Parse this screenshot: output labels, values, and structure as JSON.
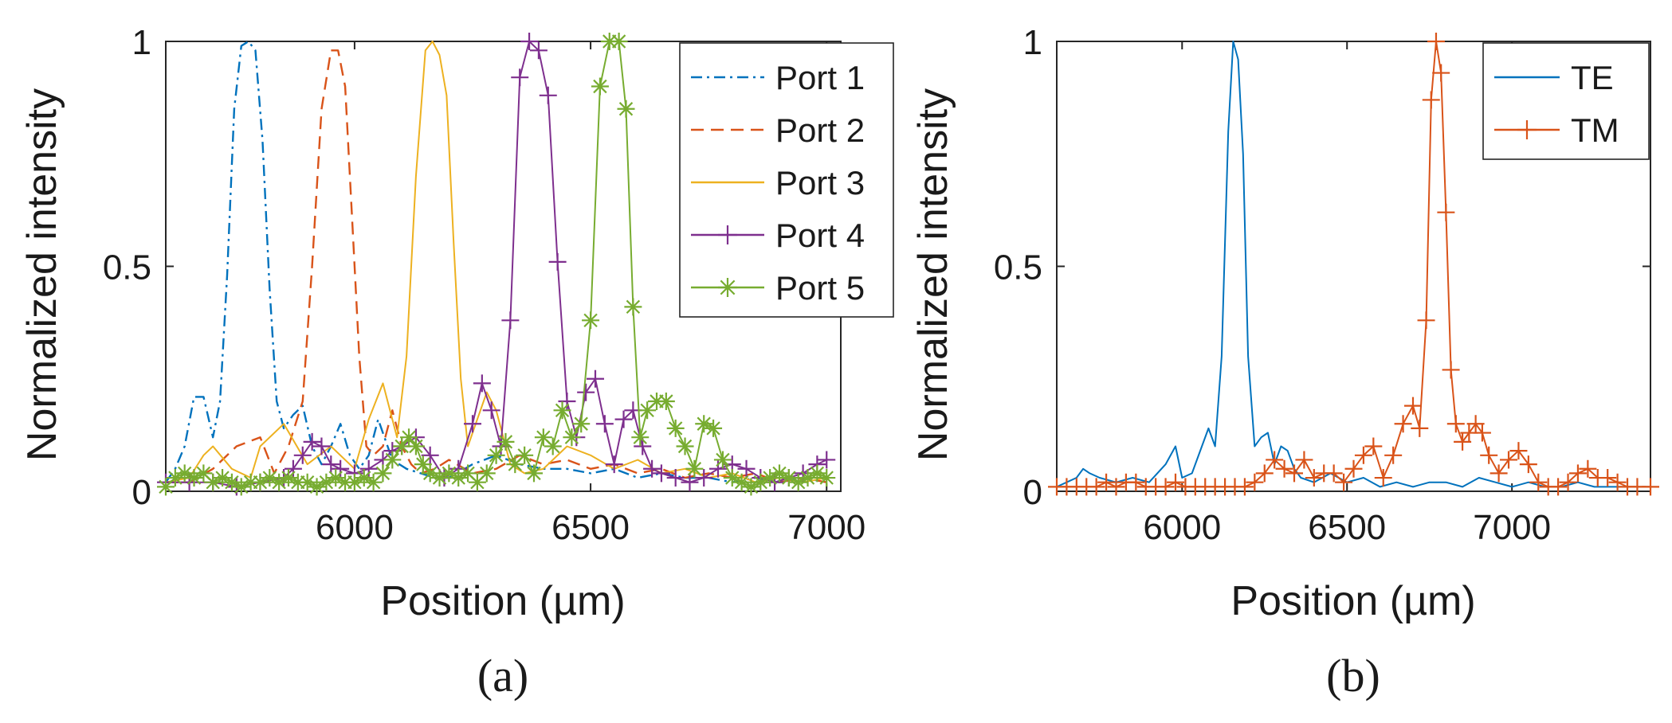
{
  "chart_data": [
    {
      "type": "line",
      "panel": "(a)",
      "xlabel": "Position (µm)",
      "ylabel": "Normalized intensity",
      "xlim": [
        5600,
        7030
      ],
      "ylim": [
        0,
        1
      ],
      "xticks": [
        6000,
        6500,
        7000
      ],
      "yticks": [
        0,
        0.5,
        1
      ],
      "ytick_labels": [
        "0",
        "0.5",
        "1"
      ],
      "legend_position": "top-right",
      "series": [
        {
          "name": "Port 1",
          "color": "#0072BD",
          "dash": "dashdot",
          "marker": "none",
          "x": [
            5600,
            5620,
            5640,
            5660,
            5680,
            5700,
            5715,
            5730,
            5745,
            5760,
            5775,
            5790,
            5805,
            5820,
            5835,
            5850,
            5870,
            5890,
            5910,
            5930,
            5950,
            5970,
            5990,
            6010,
            6030,
            6050,
            6080,
            6110,
            6140,
            6170,
            6200,
            6250,
            6300,
            6350,
            6400,
            6450,
            6500,
            6550,
            6600,
            6650,
            6700,
            6750,
            6800,
            6850,
            6900,
            6950,
            7000
          ],
          "y": [
            0.02,
            0.05,
            0.1,
            0.21,
            0.21,
            0.12,
            0.2,
            0.48,
            0.85,
            0.99,
            1.0,
            0.98,
            0.78,
            0.45,
            0.2,
            0.14,
            0.17,
            0.19,
            0.1,
            0.06,
            0.1,
            0.15,
            0.08,
            0.05,
            0.08,
            0.16,
            0.07,
            0.05,
            0.04,
            0.03,
            0.03,
            0.06,
            0.08,
            0.06,
            0.05,
            0.05,
            0.04,
            0.05,
            0.03,
            0.04,
            0.03,
            0.03,
            0.02,
            0.03,
            0.02,
            0.03,
            0.02
          ]
        },
        {
          "name": "Port 2",
          "color": "#D95319",
          "dash": "dash",
          "marker": "none",
          "x": [
            5600,
            5650,
            5700,
            5750,
            5800,
            5830,
            5860,
            5890,
            5910,
            5930,
            5950,
            5965,
            5980,
            5995,
            6010,
            6025,
            6040,
            6060,
            6080,
            6100,
            6120,
            6140,
            6170,
            6200,
            6250,
            6300,
            6350,
            6400,
            6450,
            6500,
            6550,
            6600,
            6650,
            6700,
            6750,
            6800,
            6850,
            6900,
            6950,
            7000
          ],
          "y": [
            0.02,
            0.02,
            0.05,
            0.1,
            0.12,
            0.04,
            0.1,
            0.2,
            0.5,
            0.85,
            0.98,
            0.98,
            0.9,
            0.6,
            0.3,
            0.1,
            0.08,
            0.1,
            0.18,
            0.1,
            0.06,
            0.04,
            0.05,
            0.07,
            0.04,
            0.05,
            0.08,
            0.06,
            0.07,
            0.05,
            0.06,
            0.04,
            0.05,
            0.03,
            0.04,
            0.03,
            0.04,
            0.02,
            0.03,
            0.02
          ]
        },
        {
          "name": "Port 3",
          "color": "#EDB120",
          "dash": "solid",
          "marker": "none",
          "x": [
            5600,
            5650,
            5680,
            5700,
            5740,
            5780,
            5800,
            5850,
            5900,
            5950,
            6000,
            6030,
            6060,
            6090,
            6110,
            6130,
            6150,
            6165,
            6180,
            6195,
            6210,
            6225,
            6240,
            6260,
            6280,
            6300,
            6330,
            6360,
            6400,
            6450,
            6500,
            6550,
            6600,
            6650,
            6700,
            6750,
            6800,
            6850,
            6900,
            6950,
            7000
          ],
          "y": [
            0.02,
            0.03,
            0.08,
            0.1,
            0.05,
            0.03,
            0.1,
            0.15,
            0.06,
            0.1,
            0.05,
            0.16,
            0.24,
            0.12,
            0.3,
            0.7,
            0.98,
            1.0,
            0.97,
            0.88,
            0.55,
            0.25,
            0.1,
            0.16,
            0.22,
            0.18,
            0.06,
            0.04,
            0.05,
            0.1,
            0.08,
            0.05,
            0.07,
            0.04,
            0.05,
            0.03,
            0.04,
            0.02,
            0.03,
            0.02,
            0.03
          ]
        },
        {
          "name": "Port 4",
          "color": "#7E2F8E",
          "dash": "solid",
          "marker": "plus",
          "x": [
            5600,
            5650,
            5700,
            5750,
            5800,
            5850,
            5870,
            5890,
            5910,
            5930,
            5950,
            5970,
            6000,
            6030,
            6060,
            6080,
            6100,
            6130,
            6160,
            6190,
            6220,
            6250,
            6270,
            6290,
            6310,
            6330,
            6350,
            6370,
            6390,
            6410,
            6430,
            6450,
            6470,
            6490,
            6510,
            6530,
            6550,
            6570,
            6590,
            6610,
            6630,
            6650,
            6680,
            6710,
            6740,
            6770,
            6800,
            6830,
            6860,
            6890,
            6920,
            6950,
            6980,
            7000
          ],
          "y": [
            0.02,
            0.02,
            0.02,
            0.01,
            0.02,
            0.03,
            0.05,
            0.08,
            0.11,
            0.1,
            0.06,
            0.05,
            0.04,
            0.05,
            0.07,
            0.09,
            0.1,
            0.12,
            0.08,
            0.03,
            0.05,
            0.15,
            0.24,
            0.18,
            0.1,
            0.38,
            0.92,
            1.0,
            0.98,
            0.88,
            0.51,
            0.2,
            0.12,
            0.22,
            0.25,
            0.15,
            0.06,
            0.16,
            0.18,
            0.1,
            0.05,
            0.04,
            0.03,
            0.02,
            0.03,
            0.05,
            0.06,
            0.05,
            0.03,
            0.02,
            0.03,
            0.04,
            0.06,
            0.07
          ]
        },
        {
          "name": "Port 5",
          "color": "#77AC30",
          "dash": "solid",
          "marker": "asterisk",
          "x": [
            5600,
            5620,
            5640,
            5660,
            5680,
            5700,
            5720,
            5740,
            5760,
            5780,
            5800,
            5820,
            5840,
            5860,
            5880,
            5900,
            5920,
            5940,
            5960,
            5980,
            6000,
            6020,
            6040,
            6060,
            6080,
            6100,
            6115,
            6130,
            6145,
            6160,
            6180,
            6200,
            6220,
            6240,
            6260,
            6280,
            6300,
            6320,
            6340,
            6360,
            6380,
            6400,
            6420,
            6440,
            6460,
            6480,
            6500,
            6520,
            6540,
            6560,
            6575,
            6590,
            6605,
            6620,
            6640,
            6660,
            6680,
            6700,
            6720,
            6740,
            6760,
            6780,
            6800,
            6820,
            6840,
            6860,
            6880,
            6900,
            6920,
            6940,
            6960,
            6980,
            7000
          ],
          "y": [
            0.01,
            0.03,
            0.04,
            0.03,
            0.04,
            0.02,
            0.03,
            0.02,
            0.01,
            0.02,
            0.02,
            0.03,
            0.02,
            0.03,
            0.02,
            0.02,
            0.01,
            0.02,
            0.03,
            0.02,
            0.02,
            0.03,
            0.02,
            0.04,
            0.07,
            0.1,
            0.12,
            0.1,
            0.06,
            0.04,
            0.03,
            0.04,
            0.03,
            0.04,
            0.02,
            0.04,
            0.08,
            0.11,
            0.06,
            0.08,
            0.04,
            0.12,
            0.1,
            0.18,
            0.12,
            0.15,
            0.38,
            0.9,
            1.0,
            1.0,
            0.85,
            0.41,
            0.12,
            0.18,
            0.2,
            0.2,
            0.14,
            0.1,
            0.05,
            0.15,
            0.14,
            0.07,
            0.03,
            0.02,
            0.01,
            0.02,
            0.03,
            0.04,
            0.03,
            0.02,
            0.03,
            0.04,
            0.03
          ]
        }
      ]
    },
    {
      "type": "line",
      "panel": "(b)",
      "xlabel": "Position (µm)",
      "ylabel": "Normalized intensity",
      "xlim": [
        5620,
        7420
      ],
      "ylim": [
        0,
        1
      ],
      "xticks": [
        6000,
        6500,
        7000
      ],
      "yticks": [
        0,
        0.5,
        1
      ],
      "ytick_labels": [
        "0",
        "0.5",
        "1"
      ],
      "legend_position": "top-right",
      "series": [
        {
          "name": "TE",
          "color": "#0072BD",
          "dash": "solid",
          "marker": "none",
          "x": [
            5620,
            5650,
            5680,
            5700,
            5720,
            5750,
            5800,
            5850,
            5900,
            5950,
            5980,
            6000,
            6030,
            6060,
            6080,
            6100,
            6120,
            6140,
            6155,
            6170,
            6185,
            6200,
            6220,
            6240,
            6260,
            6280,
            6300,
            6320,
            6340,
            6360,
            6400,
            6450,
            6500,
            6550,
            6600,
            6650,
            6700,
            6750,
            6800,
            6850,
            6900,
            6950,
            7000,
            7050,
            7100,
            7150,
            7200,
            7250,
            7300,
            7350,
            7420
          ],
          "y": [
            0.01,
            0.02,
            0.03,
            0.05,
            0.04,
            0.03,
            0.02,
            0.03,
            0.02,
            0.06,
            0.1,
            0.03,
            0.04,
            0.1,
            0.14,
            0.1,
            0.3,
            0.8,
            1.0,
            0.96,
            0.75,
            0.3,
            0.1,
            0.12,
            0.13,
            0.06,
            0.1,
            0.09,
            0.05,
            0.03,
            0.02,
            0.04,
            0.02,
            0.03,
            0.01,
            0.02,
            0.01,
            0.02,
            0.02,
            0.01,
            0.03,
            0.02,
            0.01,
            0.02,
            0.01,
            0.01,
            0.02,
            0.01,
            0.01,
            0.01,
            0.01
          ]
        },
        {
          "name": "TM",
          "color": "#D95319",
          "dash": "solid",
          "marker": "plus",
          "x": [
            5620,
            5650,
            5680,
            5710,
            5740,
            5770,
            5800,
            5830,
            5860,
            5890,
            5920,
            5950,
            5980,
            6010,
            6040,
            6070,
            6100,
            6130,
            6160,
            6190,
            6220,
            6250,
            6280,
            6310,
            6340,
            6370,
            6400,
            6430,
            6460,
            6490,
            6520,
            6550,
            6580,
            6610,
            6640,
            6670,
            6700,
            6720,
            6740,
            6755,
            6770,
            6785,
            6800,
            6815,
            6830,
            6850,
            6870,
            6890,
            6910,
            6930,
            6960,
            6990,
            7020,
            7050,
            7080,
            7110,
            7140,
            7170,
            7200,
            7230,
            7260,
            7290,
            7320,
            7350,
            7380,
            7420
          ],
          "y": [
            0.01,
            0.01,
            0.01,
            0.01,
            0.01,
            0.02,
            0.01,
            0.02,
            0.02,
            0.01,
            0.01,
            0.01,
            0.02,
            0.01,
            0.01,
            0.01,
            0.01,
            0.01,
            0.01,
            0.01,
            0.02,
            0.04,
            0.07,
            0.05,
            0.04,
            0.07,
            0.03,
            0.04,
            0.04,
            0.02,
            0.05,
            0.08,
            0.1,
            0.03,
            0.08,
            0.15,
            0.19,
            0.14,
            0.38,
            0.87,
            1.0,
            0.93,
            0.62,
            0.27,
            0.15,
            0.11,
            0.13,
            0.15,
            0.13,
            0.08,
            0.04,
            0.07,
            0.09,
            0.06,
            0.02,
            0.01,
            0.01,
            0.02,
            0.04,
            0.05,
            0.03,
            0.03,
            0.02,
            0.01,
            0.01,
            0.01
          ]
        }
      ]
    }
  ],
  "captions": [
    "(a)",
    "(b)"
  ]
}
